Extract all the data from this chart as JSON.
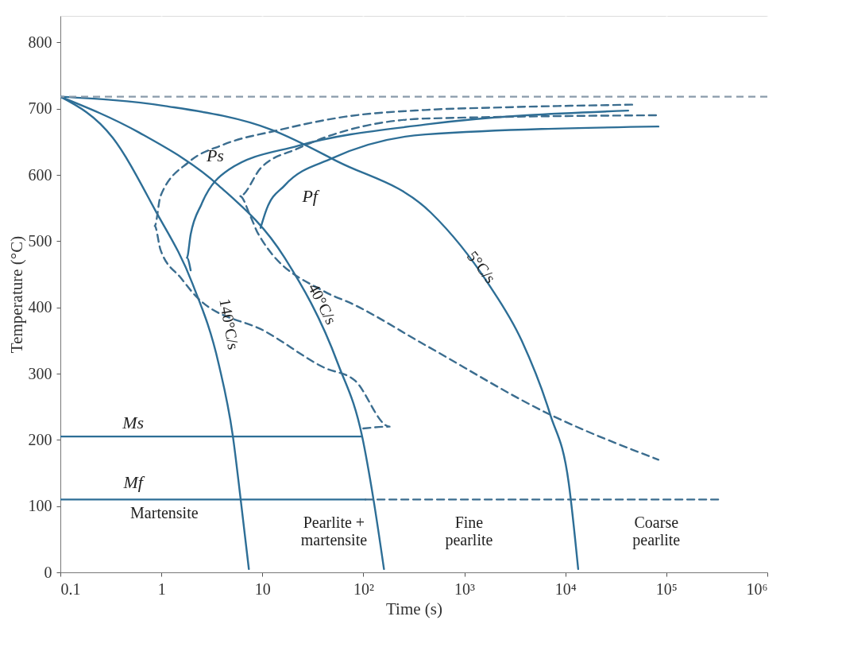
{
  "chart_data": {
    "type": "line",
    "xlabel": "Time (s)",
    "ylabel": "Temperature (°C)",
    "log": "x",
    "xlim": [
      0.1,
      1000000
    ],
    "xticks": [
      0.1,
      1,
      10,
      {
        "value": 100,
        "label": "10²"
      },
      {
        "value": 1000,
        "label": "10³"
      },
      {
        "value": 10000,
        "label": "10⁴"
      },
      {
        "value": 100000,
        "label": "10⁵"
      },
      {
        "value": 1000000,
        "label": "10⁶"
      }
    ],
    "ylim": [
      0,
      840
    ],
    "yticks": [
      0,
      100,
      200,
      300,
      400,
      500,
      600,
      700,
      800
    ],
    "grid": true,
    "series": [
      {
        "color": "#2d6e96",
        "line_style": "solid",
        "x": [
          0.1,
          0.33,
          0.86,
          2.03,
          3.69,
          5.1,
          6.1,
          7.35
        ],
        "values": [
          718,
          656,
          548,
          436,
          315,
          206,
          110,
          5
        ]
      },
      {
        "color": "#2d6e96",
        "line_style": "solid",
        "x": [
          0.1,
          0.6,
          3.69,
          16.6,
          56,
          97,
          126,
          160
        ],
        "values": [
          718,
          664,
          584,
          475,
          315,
          206,
          110,
          5
        ]
      },
      {
        "color": "#2d6e96",
        "line_style": "solid",
        "x": [
          0.1,
          1.09,
          12.4,
          56,
          466,
          1720,
          3690,
          7090,
          10800,
          13400
        ],
        "values": [
          718,
          704,
          668,
          620,
          543,
          436,
          350,
          238,
          135,
          5
        ]
      },
      {
        "color": "#3b6d8f",
        "line_style": "dashed",
        "x": [
          45900,
          2520,
          411,
          67,
          13.9,
          4.0,
          1.89,
          0.98,
          0.86,
          0.98,
          1.57,
          2.26,
          10.9,
          41,
          82,
          182,
          98
        ],
        "values": [
          706,
          702,
          698,
          688,
          667,
          645,
          620,
          568,
          523,
          487,
          444,
          415,
          363,
          309,
          290,
          220,
          217
        ]
      },
      {
        "color": "#2d6e96",
        "line_style": "solid",
        "x": [
          1.95,
          1.79,
          1.95,
          2.5,
          4.67,
          22.6,
          411,
          41900
        ],
        "values": [
          456,
          475,
          510,
          556,
          608,
          644,
          676,
          697
        ]
      },
      {
        "color": "#2d6e96",
        "line_style": "solid",
        "x": [
          9.6,
          11,
          16.6,
          49,
          411,
          83500
        ],
        "values": [
          520,
          548,
          584,
          625,
          661,
          673
        ]
      },
      {
        "color": "#3b6d8f",
        "line_style": "dashed",
        "x": [
          79000,
          411,
          22.6,
          9.6,
          6.0,
          7.6,
          9.1,
          41,
          76,
          411,
          7090,
          83500
        ],
        "values": [
          690,
          685,
          640,
          610,
          568,
          538,
          511,
          424,
          406,
          343,
          238,
          170
        ]
      },
      {
        "color": "#2d6e96",
        "line_style": "solid",
        "x": [
          0.1,
          95
        ],
        "values": [
          205,
          205
        ]
      },
      {
        "color": "#2d6e96",
        "line_style": "solid",
        "x": [
          0.1,
          105
        ],
        "values": [
          110,
          110
        ]
      },
      {
        "color": "#3b6d8f",
        "line_style": "dashed",
        "x": [
          105,
          340000
        ],
        "values": [
          110,
          110
        ]
      }
    ],
    "ref_lines": [
      {
        "axis": "y",
        "value": 718,
        "color": "#8a9bab",
        "line_style": "dashed"
      }
    ],
    "annotations": [
      "140°C/s",
      "40°C/s",
      "5°C/s",
      "Ps",
      "Pf",
      "Ms",
      "Mf",
      "Martensite",
      "Pearlite +\nmartensite",
      "Fine\npearlite",
      "Coarse\npearlite"
    ]
  }
}
